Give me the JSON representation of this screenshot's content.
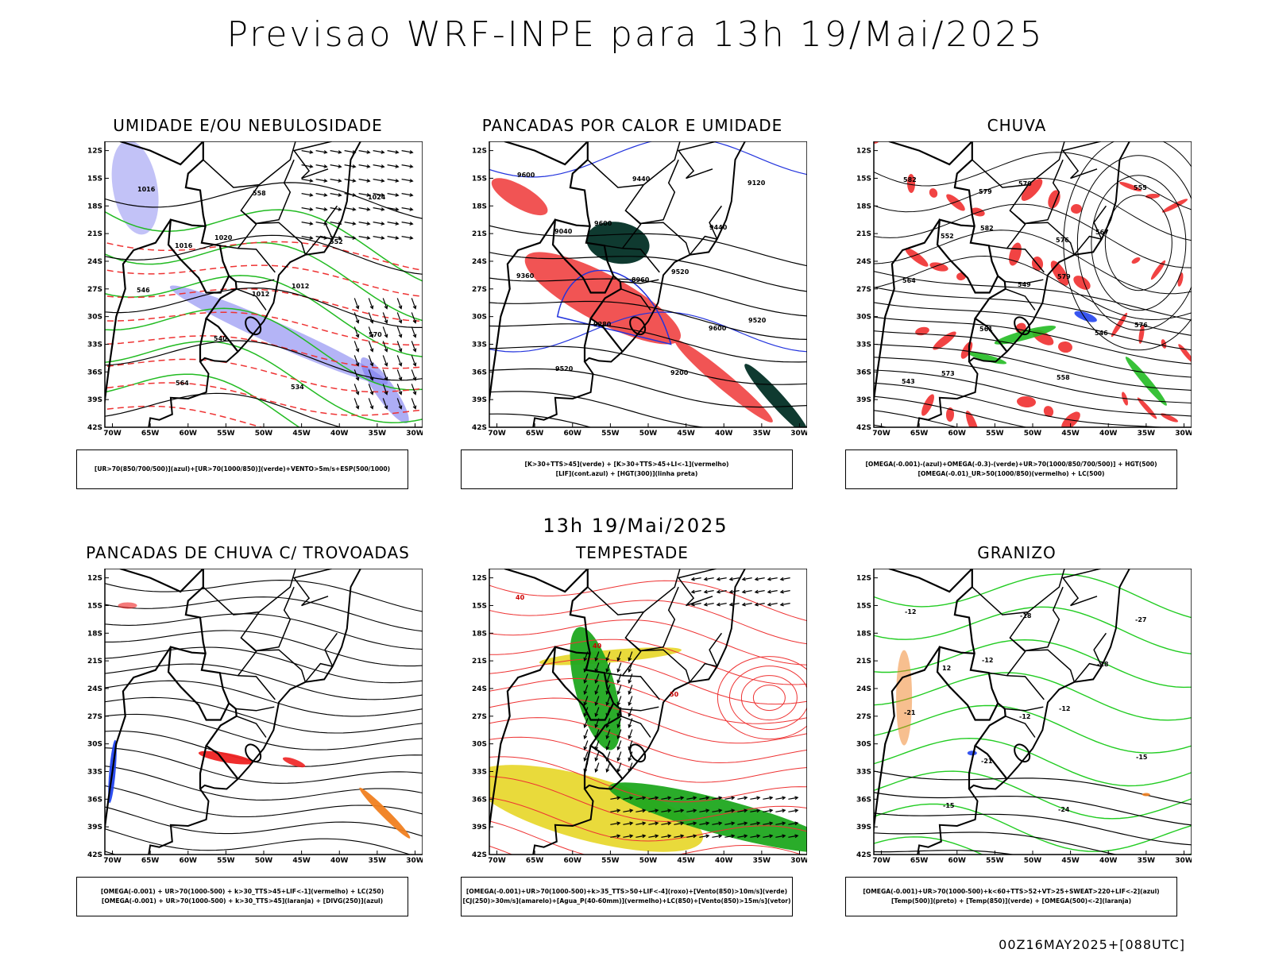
{
  "header": {
    "title": "Previsao WRF-INPE  para 13h 19/Mai/2025",
    "mid_title": "13h 19/Mai/2025",
    "footer": "00Z16MAY2025+[088UTC]"
  },
  "axes": {
    "lat_labels": [
      "12S",
      "15S",
      "18S",
      "21S",
      "24S",
      "27S",
      "30S",
      "33S",
      "36S",
      "39S",
      "42S"
    ],
    "lon_labels": [
      "70W",
      "65W",
      "60W",
      "55W",
      "50W",
      "45W",
      "40W",
      "35W",
      "30W"
    ]
  },
  "panels": [
    {
      "title": "UMIDADE E/OU NEBULOSIDADE",
      "legend": [
        "[UR>70(850/700/500)](azul)+[UR>70(1000/850)](verde)+VENTO>5m/s+ESP(500/1000)"
      ],
      "contour_labels": [
        "1016",
        "1020",
        "1012",
        "570",
        "564",
        "558",
        "552",
        "546",
        "540",
        "534",
        "1024",
        "1016",
        "1012"
      ],
      "colors": {
        "humid_upper": "#7777ee",
        "humid_low": "#22bb22",
        "thickness": "#ee3333",
        "pressure": "#000000"
      }
    },
    {
      "title": "PANCADAS POR CALOR E UMIDADE",
      "legend": [
        "[K>30+TTS>45](verde) + [K>30+TTS>45+LI<-1](vermelho)",
        "[LIF](cont.azul) + [HGT(300)](linha preta)"
      ],
      "contour_labels": [
        "9600",
        "9600",
        "9520",
        "9520",
        "9520",
        "9440",
        "9440",
        "9360",
        "9280",
        "9200",
        "9120",
        "9040",
        "8960",
        "9600"
      ],
      "colors": {
        "k_tts": "#0f3a30",
        "k_tts_li": "#f04b4b",
        "lif": "#2233dd",
        "hgt": "#000000"
      }
    },
    {
      "title": "CHUVA",
      "legend": [
        "[OMEGA(-0.001)-(azul)+OMEGA(-0.3)-(verde)+UR>70(1000/850/700/500)] + HGT(500)",
        "[OMEGA(-0.01)_UR>50(1000/850)(vermelho) + LC(500)"
      ],
      "contour_labels": [
        "582",
        "582",
        "579",
        "576",
        "573",
        "570",
        "567",
        "564",
        "561",
        "558",
        "555",
        "552",
        "549",
        "546",
        "543",
        "579",
        "576"
      ],
      "colors": {
        "omega_weak": "#2244ee",
        "omega_strong": "#22bb22",
        "rain": "#ee2222",
        "hgt": "#000000"
      }
    },
    {
      "title": "PANCADAS DE CHUVA C/ TROVOADAS",
      "legend": [
        "[OMEGA(-0.001) + UR>70(1000-500) + k>30_TTS>45+LIF<-1](vermelho) + LC(250)",
        "[OMEGA(-0.001) + UR>70(1000-500) + k>30_TTS>45](laranja) + [DIVG(250)](azul)"
      ],
      "contour_labels": [],
      "colors": {
        "storm": "#ee2222",
        "shower": "#f08020",
        "divg": "#2244ee",
        "stream": "#000000"
      }
    },
    {
      "title": "TEMPESTADE",
      "legend": [
        "[OMEGA(-0.001)+UR>70(1000-500)+k>35_TTS>50+LIF<-4](roxo)+[Vento(850)>10m/s](verde)",
        "[CJ(250)>30m/s](amarelo)+[Agua_P(40-60mm)](vermelho)+LC(850)+[Vento(850)>15m/s](vetor)"
      ],
      "contour_labels": [
        "40",
        "40",
        "50"
      ],
      "colors": {
        "jet": "#e8d830",
        "wind": "#1fa81f",
        "stream": "#ee3333",
        "vector": "#000000"
      }
    },
    {
      "title": "GRANIZO",
      "legend": [
        "[OMEGA(-0.001)+UR>70(1000-500)+k<60+TTS>52+VT>25+SWEAT>220+LIF<-2](azul)",
        "[Temp(500)](preto) + [Temp(850)](verde) + [OMEGA(500)<-2](laranja)"
      ],
      "contour_labels": [
        "-12",
        "-12",
        "-12",
        "-15",
        "-15",
        "-18",
        "-18",
        "-21",
        "-21",
        "-24",
        "-27",
        "12",
        "-12"
      ],
      "colors": {
        "temp500": "#000000",
        "temp850": "#22cc22",
        "omega": "#f08020",
        "hail": "#2244ee"
      }
    }
  ]
}
